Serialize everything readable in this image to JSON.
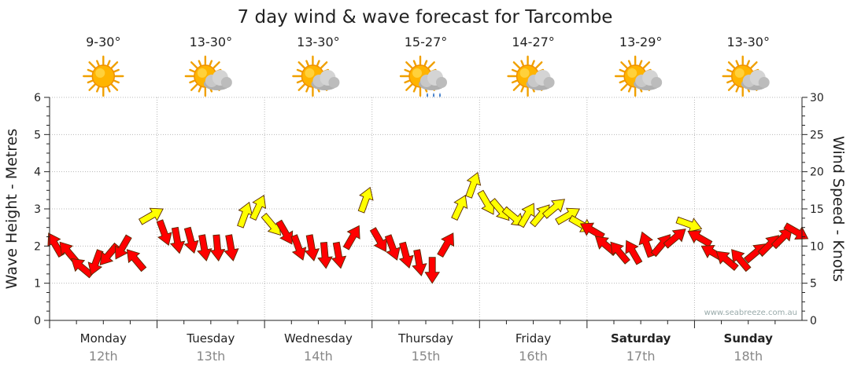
{
  "chart_data": {
    "type": "line",
    "title": "7 day wind & wave forecast for Tarcombe",
    "ylabel": "Wave Height - Metres",
    "y2label": "Wind Speed - Knots",
    "ylim": [
      0,
      6
    ],
    "y2lim": [
      0,
      30
    ],
    "y_ticks": [
      "0",
      "1",
      "2",
      "3",
      "4",
      "5",
      "6"
    ],
    "y2_ticks": [
      "0",
      "5",
      "10",
      "15",
      "20",
      "25",
      "30"
    ],
    "grid": true,
    "credit": "www.seabreeze.com.au",
    "days": [
      {
        "name": "Monday",
        "date": "12th",
        "temp": "9-30°",
        "icon": "sun-icon",
        "bold": false
      },
      {
        "name": "Tuesday",
        "date": "13th",
        "temp": "13-30°",
        "icon": "sun-cloud-icon",
        "bold": false
      },
      {
        "name": "Wednesday",
        "date": "14th",
        "temp": "13-30°",
        "icon": "sun-cloud-icon",
        "bold": false
      },
      {
        "name": "Thursday",
        "date": "15th",
        "temp": "15-27°",
        "icon": "sun-cloud-rain-icon",
        "bold": false
      },
      {
        "name": "Friday",
        "date": "16th",
        "temp": "14-27°",
        "icon": "sun-cloud-icon",
        "bold": false
      },
      {
        "name": "Saturday",
        "date": "17th",
        "temp": "13-29°",
        "icon": "sun-cloud-icon",
        "bold": true
      },
      {
        "name": "Sunday",
        "date": "18th",
        "temp": "13-30°",
        "icon": "sun-cloud-icon",
        "bold": true
      }
    ],
    "colors": {
      "strong_wind": "#ff0000",
      "moderate_wind": "#ffff00",
      "grid": "#aaaaaa"
    },
    "series": [
      {
        "unit": "knots",
        "day_offsets": [
          0.0,
          0.125,
          0.25,
          0.375,
          0.5,
          0.625,
          0.75,
          0.875
        ],
        "values": [
          [
            10,
            9,
            7,
            8,
            9,
            10,
            8,
            14
          ],
          [
            12,
            11,
            11,
            10,
            10,
            10,
            14,
            15
          ],
          [
            13,
            12,
            10,
            10,
            9,
            9,
            11,
            16
          ],
          [
            11,
            10,
            9,
            8,
            7,
            10,
            15,
            18
          ],
          [
            16,
            15,
            14,
            14,
            14,
            15,
            14,
            13
          ],
          [
            12,
            10,
            9,
            9,
            10,
            10,
            11,
            13
          ],
          [
            11,
            9,
            8,
            8,
            9,
            10,
            11,
            12
          ]
        ],
        "directions_deg": [
          [
            330,
            320,
            310,
            200,
            220,
            210,
            320,
            60
          ],
          [
            160,
            170,
            165,
            170,
            175,
            170,
            20,
            25
          ],
          [
            140,
            150,
            160,
            170,
            175,
            170,
            30,
            20
          ],
          [
            150,
            160,
            165,
            170,
            180,
            30,
            25,
            20
          ],
          [
            150,
            140,
            130,
            30,
            40,
            50,
            60,
            120
          ],
          [
            300,
            310,
            320,
            330,
            340,
            40,
            50,
            110
          ],
          [
            300,
            300,
            310,
            320,
            50,
            45,
            45,
            120
          ]
        ]
      }
    ]
  }
}
